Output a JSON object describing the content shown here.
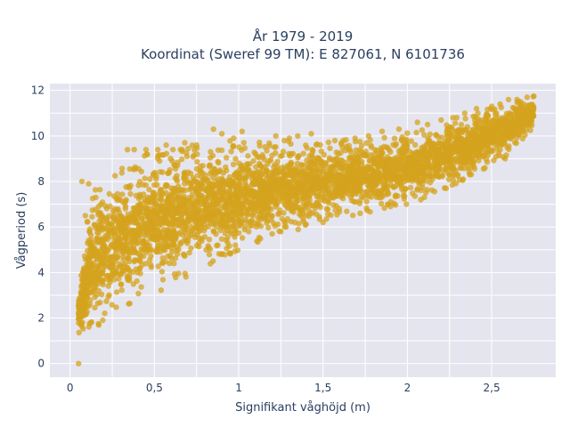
{
  "chart_data": {
    "type": "scatter",
    "title_lines": [
      "År 1979 - 2019",
      "Koordinat (Sweref 99 TM): E 827061, N 6101736"
    ],
    "xlabel": "Signifikant våghöjd (m)",
    "ylabel": "Vågperiod (s)",
    "xlim": [
      -0.12,
      2.88
    ],
    "ylim": [
      -0.6,
      12.3
    ],
    "x_ticks": [
      0,
      0.5,
      1,
      1.5,
      2,
      2.5
    ],
    "x_tick_labels": [
      "0",
      "0,5",
      "1",
      "1,5",
      "2",
      "2,5"
    ],
    "y_ticks": [
      0,
      2,
      4,
      6,
      8,
      10,
      12
    ],
    "y_tick_labels": [
      "0",
      "2",
      "4",
      "6",
      "8",
      "10",
      "12"
    ],
    "grid": true,
    "legend": "none",
    "marker_color": "#d4a31e",
    "plot_bg": "#e5e5ef",
    "grid_color": "#ffffff",
    "cloud_lower": [
      [
        0.05,
        1.2
      ],
      [
        0.1,
        1.3
      ],
      [
        0.2,
        1.7
      ],
      [
        0.3,
        2.3
      ],
      [
        0.5,
        3.0
      ],
      [
        0.7,
        3.8
      ],
      [
        1.0,
        5.0
      ],
      [
        1.3,
        5.7
      ],
      [
        1.5,
        6.2
      ],
      [
        1.8,
        6.7
      ],
      [
        2.0,
        7.0
      ],
      [
        2.2,
        7.6
      ],
      [
        2.4,
        8.3
      ],
      [
        2.6,
        9.2
      ],
      [
        2.75,
        10.4
      ]
    ],
    "cloud_upper": [
      [
        0.05,
        3.1
      ],
      [
        0.1,
        6.5
      ],
      [
        0.15,
        7.9
      ],
      [
        0.2,
        8.1
      ],
      [
        0.3,
        8.6
      ],
      [
        0.4,
        9.3
      ],
      [
        0.6,
        9.5
      ],
      [
        0.8,
        9.7
      ],
      [
        1.0,
        9.9
      ],
      [
        1.2,
        9.8
      ],
      [
        1.5,
        9.8
      ],
      [
        1.8,
        10.0
      ],
      [
        2.0,
        10.2
      ],
      [
        2.2,
        10.6
      ],
      [
        2.4,
        11.1
      ],
      [
        2.6,
        11.5
      ],
      [
        2.75,
        11.75
      ]
    ],
    "outliers": [
      [
        0.05,
        0.0
      ],
      [
        0.07,
        8.0
      ],
      [
        0.11,
        7.9
      ],
      [
        0.09,
        6.5
      ],
      [
        0.34,
        9.4
      ],
      [
        0.38,
        9.4
      ],
      [
        0.45,
        9.4
      ],
      [
        0.52,
        9.4
      ],
      [
        0.57,
        9.6
      ],
      [
        0.61,
        9.4
      ],
      [
        0.68,
        9.7
      ],
      [
        0.75,
        9.6
      ],
      [
        0.85,
        10.3
      ],
      [
        0.9,
        10.1
      ],
      [
        0.97,
        9.9
      ],
      [
        1.02,
        10.2
      ],
      [
        1.22,
        10.0
      ],
      [
        1.27,
        9.8
      ],
      [
        1.3,
        9.9
      ],
      [
        1.35,
        10.0
      ],
      [
        1.43,
        10.1
      ],
      [
        1.57,
        9.8
      ],
      [
        1.61,
        9.7
      ],
      [
        1.69,
        9.9
      ],
      [
        1.77,
        10.0
      ],
      [
        1.85,
        10.2
      ],
      [
        1.95,
        10.3
      ],
      [
        2.06,
        10.6
      ],
      [
        2.12,
        10.5
      ],
      [
        2.2,
        10.7
      ],
      [
        2.27,
        10.8
      ],
      [
        2.34,
        11.0
      ],
      [
        2.41,
        11.2
      ],
      [
        2.5,
        11.3
      ],
      [
        2.55,
        11.4
      ],
      [
        2.6,
        11.6
      ],
      [
        2.65,
        11.6
      ],
      [
        2.71,
        11.7
      ],
      [
        2.75,
        11.75
      ],
      [
        1.25,
        5.8
      ],
      [
        1.28,
        6.0
      ],
      [
        0.98,
        5.2
      ],
      [
        1.5,
        6.2
      ],
      [
        1.72,
        6.6
      ],
      [
        2.08,
        7.2
      ],
      [
        1.9,
        6.9
      ],
      [
        2.33,
        8.1
      ],
      [
        2.23,
        7.7
      ],
      [
        2.46,
        8.6
      ],
      [
        2.58,
        9.0
      ]
    ]
  }
}
